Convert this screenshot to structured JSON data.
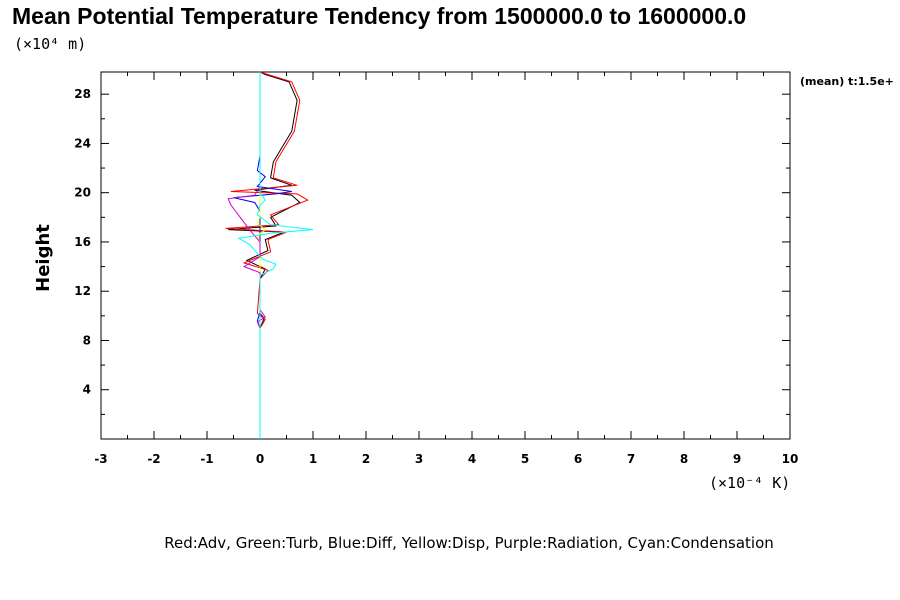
{
  "chart_data": {
    "type": "line",
    "title": "Mean Potential Temperature Tendency from 1500000.0 to 1600000.0",
    "y_unit": "(×10⁴ m)",
    "x_unit": "(×10⁻⁴ K)",
    "ylabel": "Height",
    "mean_label": "(mean) t:1.5e+",
    "caption": "Red:Adv, Green:Turb, Blue:Diff, Yellow:Disp, Purple:Radiation, Cyan:Condensation",
    "xlim": [
      -3,
      10
    ],
    "ylim": [
      0,
      29.8
    ],
    "x_ticks": [
      -3,
      -2,
      -1,
      0,
      1,
      2,
      3,
      4,
      5,
      6,
      7,
      8,
      9,
      10
    ],
    "y_ticks": [
      4,
      8,
      12,
      16,
      20,
      24,
      28
    ],
    "series": [
      {
        "color": "#000000",
        "points": [
          [
            0,
            0
          ],
          [
            0,
            9
          ],
          [
            0.08,
            9.8
          ],
          [
            0,
            10.2
          ],
          [
            0,
            13
          ],
          [
            0.1,
            13.8
          ],
          [
            -0.25,
            14.5
          ],
          [
            0.15,
            15.3
          ],
          [
            0.1,
            16.2
          ],
          [
            0.45,
            16.8
          ],
          [
            -0.6,
            17
          ],
          [
            0.3,
            17.3
          ],
          [
            0.2,
            18
          ],
          [
            0.75,
            19.2
          ],
          [
            0.6,
            19.8
          ],
          [
            -0.1,
            20.2
          ],
          [
            0.6,
            20.6
          ],
          [
            0.2,
            21.2
          ],
          [
            0.25,
            22.5
          ],
          [
            0.6,
            25
          ],
          [
            0.7,
            27.5
          ],
          [
            0.55,
            29
          ],
          [
            0.1,
            29.6
          ],
          [
            0,
            29.8
          ]
        ]
      },
      {
        "color": "#ff0000",
        "points": [
          [
            0,
            0
          ],
          [
            0,
            9
          ],
          [
            0.1,
            9.7
          ],
          [
            -0.05,
            10.2
          ],
          [
            0,
            13
          ],
          [
            0.15,
            13.7
          ],
          [
            -0.3,
            14.3
          ],
          [
            0.2,
            15.2
          ],
          [
            0.15,
            16.2
          ],
          [
            0.5,
            16.8
          ],
          [
            -0.65,
            17.1
          ],
          [
            0.35,
            17.4
          ],
          [
            0.2,
            18.2
          ],
          [
            0.9,
            19.4
          ],
          [
            0.7,
            19.9
          ],
          [
            -0.55,
            20.1
          ],
          [
            0.7,
            20.6
          ],
          [
            0.25,
            21.2
          ],
          [
            0.3,
            22.5
          ],
          [
            0.65,
            25
          ],
          [
            0.75,
            27.5
          ],
          [
            0.6,
            29
          ],
          [
            0.15,
            29.6
          ],
          [
            0,
            29.8
          ]
        ]
      },
      {
        "color": "#00cc00",
        "points": [
          [
            0,
            0
          ],
          [
            0,
            29.8
          ]
        ]
      },
      {
        "color": "#0000ff",
        "points": [
          [
            0,
            0
          ],
          [
            0,
            9
          ],
          [
            -0.05,
            9.6
          ],
          [
            0,
            10.3
          ],
          [
            0,
            18.5
          ],
          [
            -0.1,
            19.2
          ],
          [
            -0.5,
            19.6
          ],
          [
            0.3,
            19.9
          ],
          [
            0.6,
            20.1
          ],
          [
            -0.05,
            20.5
          ],
          [
            0.1,
            21.3
          ],
          [
            -0.05,
            21.8
          ],
          [
            0,
            23
          ],
          [
            0,
            29.8
          ]
        ]
      },
      {
        "color": "#ffff00",
        "points": [
          [
            0,
            0
          ],
          [
            0,
            16
          ],
          [
            -0.05,
            16.5
          ],
          [
            0.1,
            17
          ],
          [
            -0.05,
            17.5
          ],
          [
            0,
            18
          ],
          [
            0,
            29.8
          ]
        ]
      },
      {
        "color": "#cc00cc",
        "points": [
          [
            0,
            0
          ],
          [
            0,
            9
          ],
          [
            -0.05,
            9.5
          ],
          [
            0.1,
            9.9
          ],
          [
            0,
            10.5
          ],
          [
            0,
            13.5
          ],
          [
            -0.3,
            14
          ],
          [
            0,
            14.8
          ],
          [
            0,
            16
          ],
          [
            -0.2,
            17
          ],
          [
            -0.55,
            19
          ],
          [
            -0.6,
            19.5
          ],
          [
            -0.1,
            19.8
          ],
          [
            0,
            20.5
          ],
          [
            0,
            29.8
          ]
        ]
      },
      {
        "color": "#00ffff",
        "points": [
          [
            0,
            0
          ],
          [
            0,
            13.3
          ],
          [
            0.25,
            13.8
          ],
          [
            0.3,
            14.2
          ],
          [
            0.05,
            14.6
          ],
          [
            -0.2,
            15.8
          ],
          [
            -0.4,
            16.3
          ],
          [
            0.2,
            16.7
          ],
          [
            1.0,
            17
          ],
          [
            0.2,
            17.4
          ],
          [
            -0.05,
            18.2
          ],
          [
            0,
            19
          ],
          [
            0.1,
            19.4
          ],
          [
            0,
            20
          ],
          [
            0,
            29.8
          ]
        ]
      }
    ]
  }
}
